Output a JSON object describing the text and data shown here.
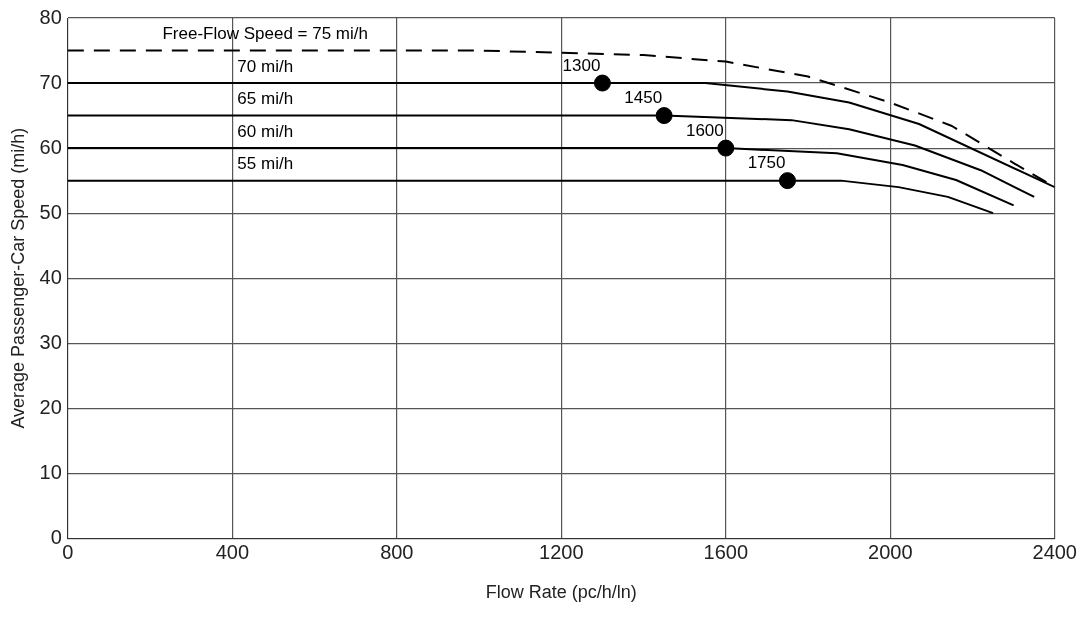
{
  "chart_data": {
    "type": "line",
    "xlabel": "Flow Rate (pc/h/ln)",
    "ylabel": "Average Passenger-Car Speed (mi/h)",
    "xlim": [
      0,
      2400
    ],
    "xticks": [
      0,
      400,
      800,
      1200,
      1600,
      2000,
      2400
    ],
    "ylim": [
      0,
      80
    ],
    "yticks": [
      0,
      10,
      20,
      30,
      40,
      50,
      60,
      70,
      80
    ],
    "grid": true,
    "legend": false,
    "marker": "none",
    "series": [
      {
        "name": "Free-Flow Speed = 75 mi/h",
        "color": "#000000",
        "line_style": "dashed",
        "x": [
          0,
          1000,
          1400,
          1600,
          1800,
          2000,
          2150,
          2300,
          2400
        ],
        "values": [
          75,
          75,
          74.3,
          73.3,
          71,
          67,
          63.4,
          57.7,
          54
        ]
      },
      {
        "name": "70 mi/h",
        "color": "#000000",
        "x": [
          0,
          1300,
          1550,
          1750,
          1900,
          2070,
          2400
        ],
        "values": [
          70,
          70,
          70,
          68.7,
          67,
          63.7,
          54
        ]
      },
      {
        "name": "65 mi/h",
        "color": "#000000",
        "x": [
          0,
          1450,
          1760,
          1900,
          2060,
          2220,
          2350
        ],
        "values": [
          65,
          65,
          64.3,
          62.9,
          60.4,
          56.6,
          52.5
        ]
      },
      {
        "name": "60 mi/h",
        "color": "#000000",
        "x": [
          0,
          1600,
          1870,
          2030,
          2160,
          2300
        ],
        "values": [
          60,
          60,
          59.2,
          57.4,
          55.1,
          51.2
        ]
      },
      {
        "name": "55 mi/h",
        "color": "#000000",
        "x": [
          0,
          1750,
          1880,
          2020,
          2140,
          2250
        ],
        "values": [
          55,
          55,
          55,
          54,
          52.5,
          50
        ]
      },
      {
        "type": "scatter",
        "marker": "circle",
        "color": "#000000",
        "x": [
          1300,
          1450,
          1600,
          1750
        ],
        "values": [
          70,
          65,
          60,
          55
        ]
      }
    ],
    "annotations": [
      {
        "text": "1300",
        "x": 1300,
        "y": 70
      },
      {
        "text": "1450",
        "x": 1450,
        "y": 65
      },
      {
        "text": "1600",
        "x": 1600,
        "y": 60
      },
      {
        "text": "1750",
        "x": 1750,
        "y": 55
      }
    ]
  }
}
